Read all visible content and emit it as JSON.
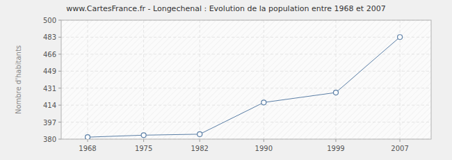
{
  "chart_data": {
    "type": "line",
    "title": "www.CartesFrance.fr - Longechenal : Evolution de la population entre 1968 et 2007",
    "y_label": "Nombre d'habitants",
    "x": [
      1968,
      1975,
      1982,
      1990,
      1999,
      2007
    ],
    "values": [
      382,
      384,
      385,
      417,
      427,
      483
    ],
    "color": "#5b7fa6",
    "marker": "circle",
    "xlim": [
      1964.7,
      2010.9
    ],
    "xticks": [
      1968,
      1975,
      1982,
      1990,
      1999,
      2007
    ],
    "ylim": [
      380,
      500
    ],
    "yticks": [
      380,
      {
        "value": 397.14,
        "label": "397"
      },
      {
        "value": 414.29,
        "label": "414"
      },
      {
        "value": 431.43,
        "label": "431"
      },
      {
        "value": 448.57,
        "label": "449"
      },
      {
        "value": 465.71,
        "label": "466"
      },
      {
        "value": 482.86,
        "label": "483"
      },
      500
    ],
    "grid": true
  }
}
